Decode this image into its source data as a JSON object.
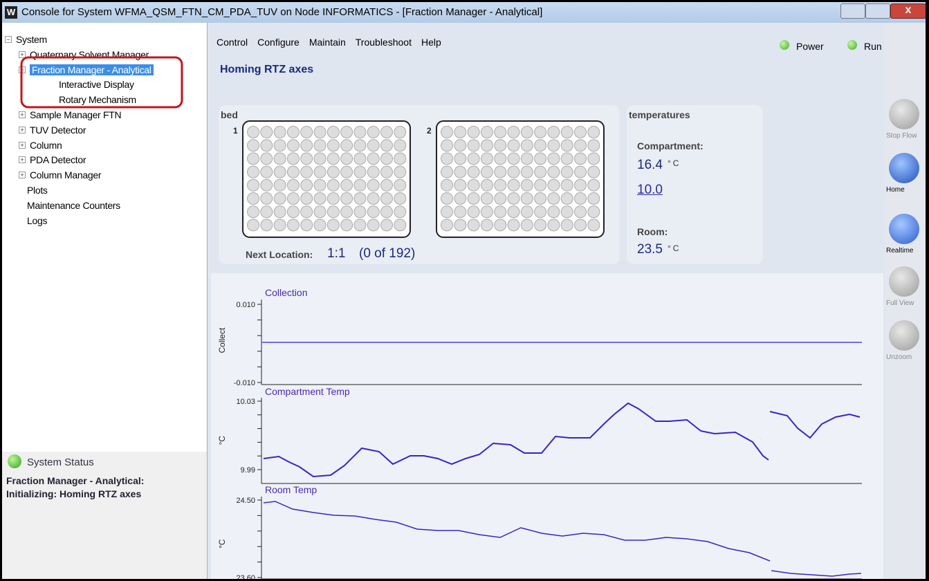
{
  "window": {
    "title": "Console for System WFMA_QSM_FTN_CM_PDA_TUV on Node INFORMATICS - [Fraction Manager - Analytical]"
  },
  "tree": {
    "items": [
      "System",
      "Quaternary Solvent Manager",
      "Fraction Manager - Analytical",
      "Interactive Display",
      "Rotary Mechanism",
      "Sample Manager FTN",
      "TUV Detector",
      "Column",
      "PDA Detector",
      "Column Manager",
      "Plots",
      "Maintenance Counters",
      "Logs"
    ]
  },
  "menu": [
    "Control",
    "Configure",
    "Maintain",
    "Troubleshoot",
    "Help"
  ],
  "indicators": [
    "Power",
    "Run"
  ],
  "heading": "Homing RTZ axes",
  "bed": {
    "label": "bed",
    "plates": [
      "1",
      "2"
    ],
    "next_location_label": "Next Location:",
    "next_location": "1:1",
    "count": "(0 of 192)"
  },
  "temperatures": {
    "title": "temperatures",
    "compartment_label": "Compartment:",
    "compartment_value": "16.4",
    "compartment_unit": "°C",
    "setpoint": "10.0",
    "room_label": "Room:",
    "room_value": "23.5",
    "room_unit": "°C"
  },
  "toolbar": [
    "Stop Flow",
    "Home",
    "Realtime",
    "Full View",
    "Unzoom"
  ],
  "status": {
    "label": "System Status",
    "lines": [
      "Fraction Manager - Analytical:",
      "Initializing: Homing RTZ axes"
    ]
  },
  "plots": [
    {
      "title": "Collection",
      "ylabel": "Collect",
      "ticks": [
        "0.010",
        "-0.010"
      ]
    },
    {
      "title": "Compartment Temp",
      "ylabel": "°C",
      "ticks": [
        "10.03",
        "9.99"
      ]
    },
    {
      "title": "Room Temp",
      "ylabel": "°C",
      "ticks": [
        "24.50",
        "23.60"
      ]
    }
  ]
}
